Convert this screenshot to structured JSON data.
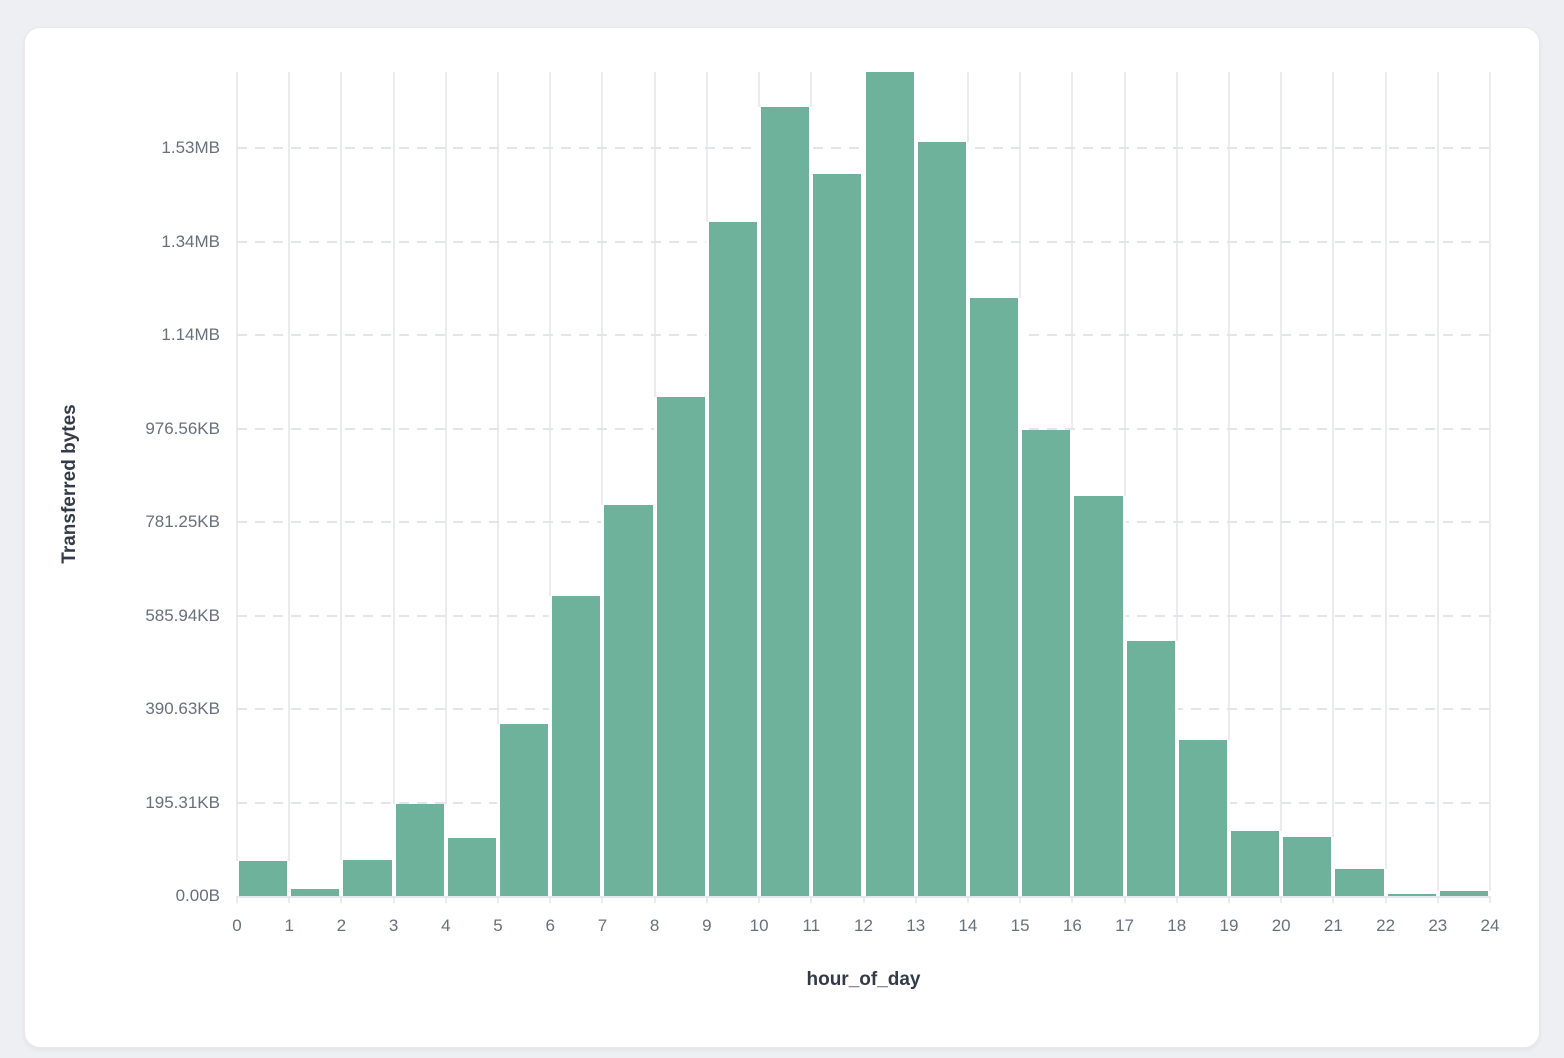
{
  "page": {
    "background_color": "#edeff2",
    "card": {
      "background_color": "#ffffff",
      "border_color": "#e7e9ed"
    }
  },
  "chart_data": {
    "type": "bar",
    "subtype": "histogram",
    "title": "",
    "xlabel": "hour_of_day",
    "ylabel": "Transferred bytes",
    "unit": "bytes",
    "categories": [
      0,
      1,
      2,
      3,
      4,
      5,
      6,
      7,
      8,
      9,
      10,
      11,
      12,
      13,
      14,
      15,
      16,
      17,
      18,
      19,
      20,
      21,
      22,
      23
    ],
    "values": [
      75000,
      15000,
      77000,
      197000,
      124000,
      368000,
      642000,
      836000,
      1067000,
      1442000,
      1688000,
      1544000,
      1763000,
      1613000,
      1279000,
      997000,
      856000,
      546000,
      334000,
      139000,
      126000,
      58000,
      4000,
      11000
    ],
    "xlim": [
      0,
      24
    ],
    "ylim": [
      0,
      1763000
    ],
    "x_tick_labels": [
      "0",
      "1",
      "2",
      "3",
      "4",
      "5",
      "6",
      "7",
      "8",
      "9",
      "10",
      "11",
      "12",
      "13",
      "14",
      "15",
      "16",
      "17",
      "18",
      "19",
      "20",
      "21",
      "22",
      "23",
      "24"
    ],
    "y_ticks": [
      {
        "value": 0,
        "label": "0.00B"
      },
      {
        "value": 200000,
        "label": "195.31KB"
      },
      {
        "value": 400000,
        "label": "390.63KB"
      },
      {
        "value": 600000,
        "label": "585.94KB"
      },
      {
        "value": 800000,
        "label": "781.25KB"
      },
      {
        "value": 1000000,
        "label": "976.56KB"
      },
      {
        "value": 1200000,
        "label": "1.14MB"
      },
      {
        "value": 1400000,
        "label": "1.34MB"
      },
      {
        "value": 1600000,
        "label": "1.53MB"
      }
    ],
    "grid": {
      "vertical": "solid",
      "horizontal": "dashed"
    },
    "legend": "none",
    "bar_color": "#6FB29B",
    "bar_gap_color": "#ffffff",
    "vertical_gridline_color": "#e9ebef",
    "dashed_gridline_color": "#e2e5ea",
    "tick_label_color": "#68707e",
    "axis_title_color": "#333b48"
  }
}
